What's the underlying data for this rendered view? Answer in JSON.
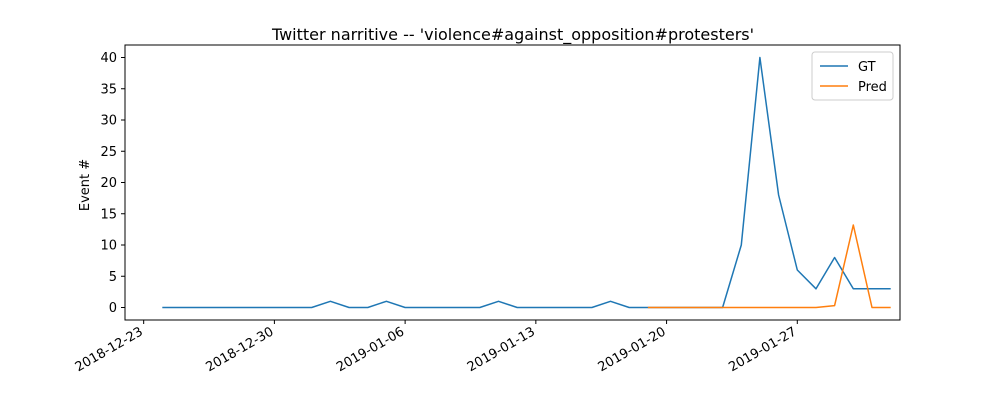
{
  "chart_data": {
    "type": "line",
    "title": "Twitter narritive -- 'violence#against_opposition#protesters'",
    "xlabel": "",
    "ylabel": "Event #",
    "x_type": "date",
    "x_range": [
      "2018-12-22",
      "2019-01-31"
    ],
    "xticks": [
      "2018-12-23",
      "2018-12-30",
      "2019-01-06",
      "2019-01-13",
      "2019-01-20",
      "2019-01-27"
    ],
    "ylim": [
      -2,
      42
    ],
    "yticks": [
      0,
      5,
      10,
      15,
      20,
      25,
      30,
      35,
      40
    ],
    "grid": false,
    "legend_position": "top-right",
    "series": [
      {
        "name": "GT",
        "color": "#1f77b4",
        "points": [
          [
            "2018-12-24",
            0
          ],
          [
            "2018-12-25",
            0
          ],
          [
            "2018-12-26",
            0
          ],
          [
            "2018-12-27",
            0
          ],
          [
            "2018-12-28",
            0
          ],
          [
            "2018-12-29",
            0
          ],
          [
            "2018-12-30",
            0
          ],
          [
            "2018-12-31",
            0
          ],
          [
            "2019-01-01",
            0
          ],
          [
            "2019-01-02",
            1
          ],
          [
            "2019-01-03",
            0
          ],
          [
            "2019-01-04",
            0
          ],
          [
            "2019-01-05",
            1
          ],
          [
            "2019-01-06",
            0
          ],
          [
            "2019-01-07",
            0
          ],
          [
            "2019-01-08",
            0
          ],
          [
            "2019-01-09",
            0
          ],
          [
            "2019-01-10",
            0
          ],
          [
            "2019-01-11",
            1
          ],
          [
            "2019-01-12",
            0
          ],
          [
            "2019-01-13",
            0
          ],
          [
            "2019-01-14",
            0
          ],
          [
            "2019-01-15",
            0
          ],
          [
            "2019-01-16",
            0
          ],
          [
            "2019-01-17",
            1
          ],
          [
            "2019-01-18",
            0
          ],
          [
            "2019-01-19",
            0
          ],
          [
            "2019-01-20",
            0
          ],
          [
            "2019-01-21",
            0
          ],
          [
            "2019-01-22",
            0
          ],
          [
            "2019-01-23",
            0
          ],
          [
            "2019-01-24",
            10
          ],
          [
            "2019-01-25",
            40
          ],
          [
            "2019-01-26",
            18
          ],
          [
            "2019-01-27",
            6
          ],
          [
            "2019-01-28",
            3
          ],
          [
            "2019-01-29",
            8
          ],
          [
            "2019-01-30",
            3
          ],
          [
            "2019-01-31",
            3
          ],
          [
            "2019-02-01",
            3
          ]
        ]
      },
      {
        "name": "Pred",
        "color": "#ff7f0e",
        "points": [
          [
            "2019-01-19",
            0
          ],
          [
            "2019-01-20",
            0
          ],
          [
            "2019-01-21",
            0
          ],
          [
            "2019-01-22",
            0
          ],
          [
            "2019-01-23",
            0
          ],
          [
            "2019-01-24",
            0
          ],
          [
            "2019-01-25",
            0
          ],
          [
            "2019-01-26",
            0
          ],
          [
            "2019-01-27",
            0
          ],
          [
            "2019-01-28",
            0
          ],
          [
            "2019-01-29",
            0.3
          ],
          [
            "2019-01-30",
            13.2
          ],
          [
            "2019-01-31",
            0
          ],
          [
            "2019-02-01",
            0
          ]
        ]
      }
    ]
  }
}
